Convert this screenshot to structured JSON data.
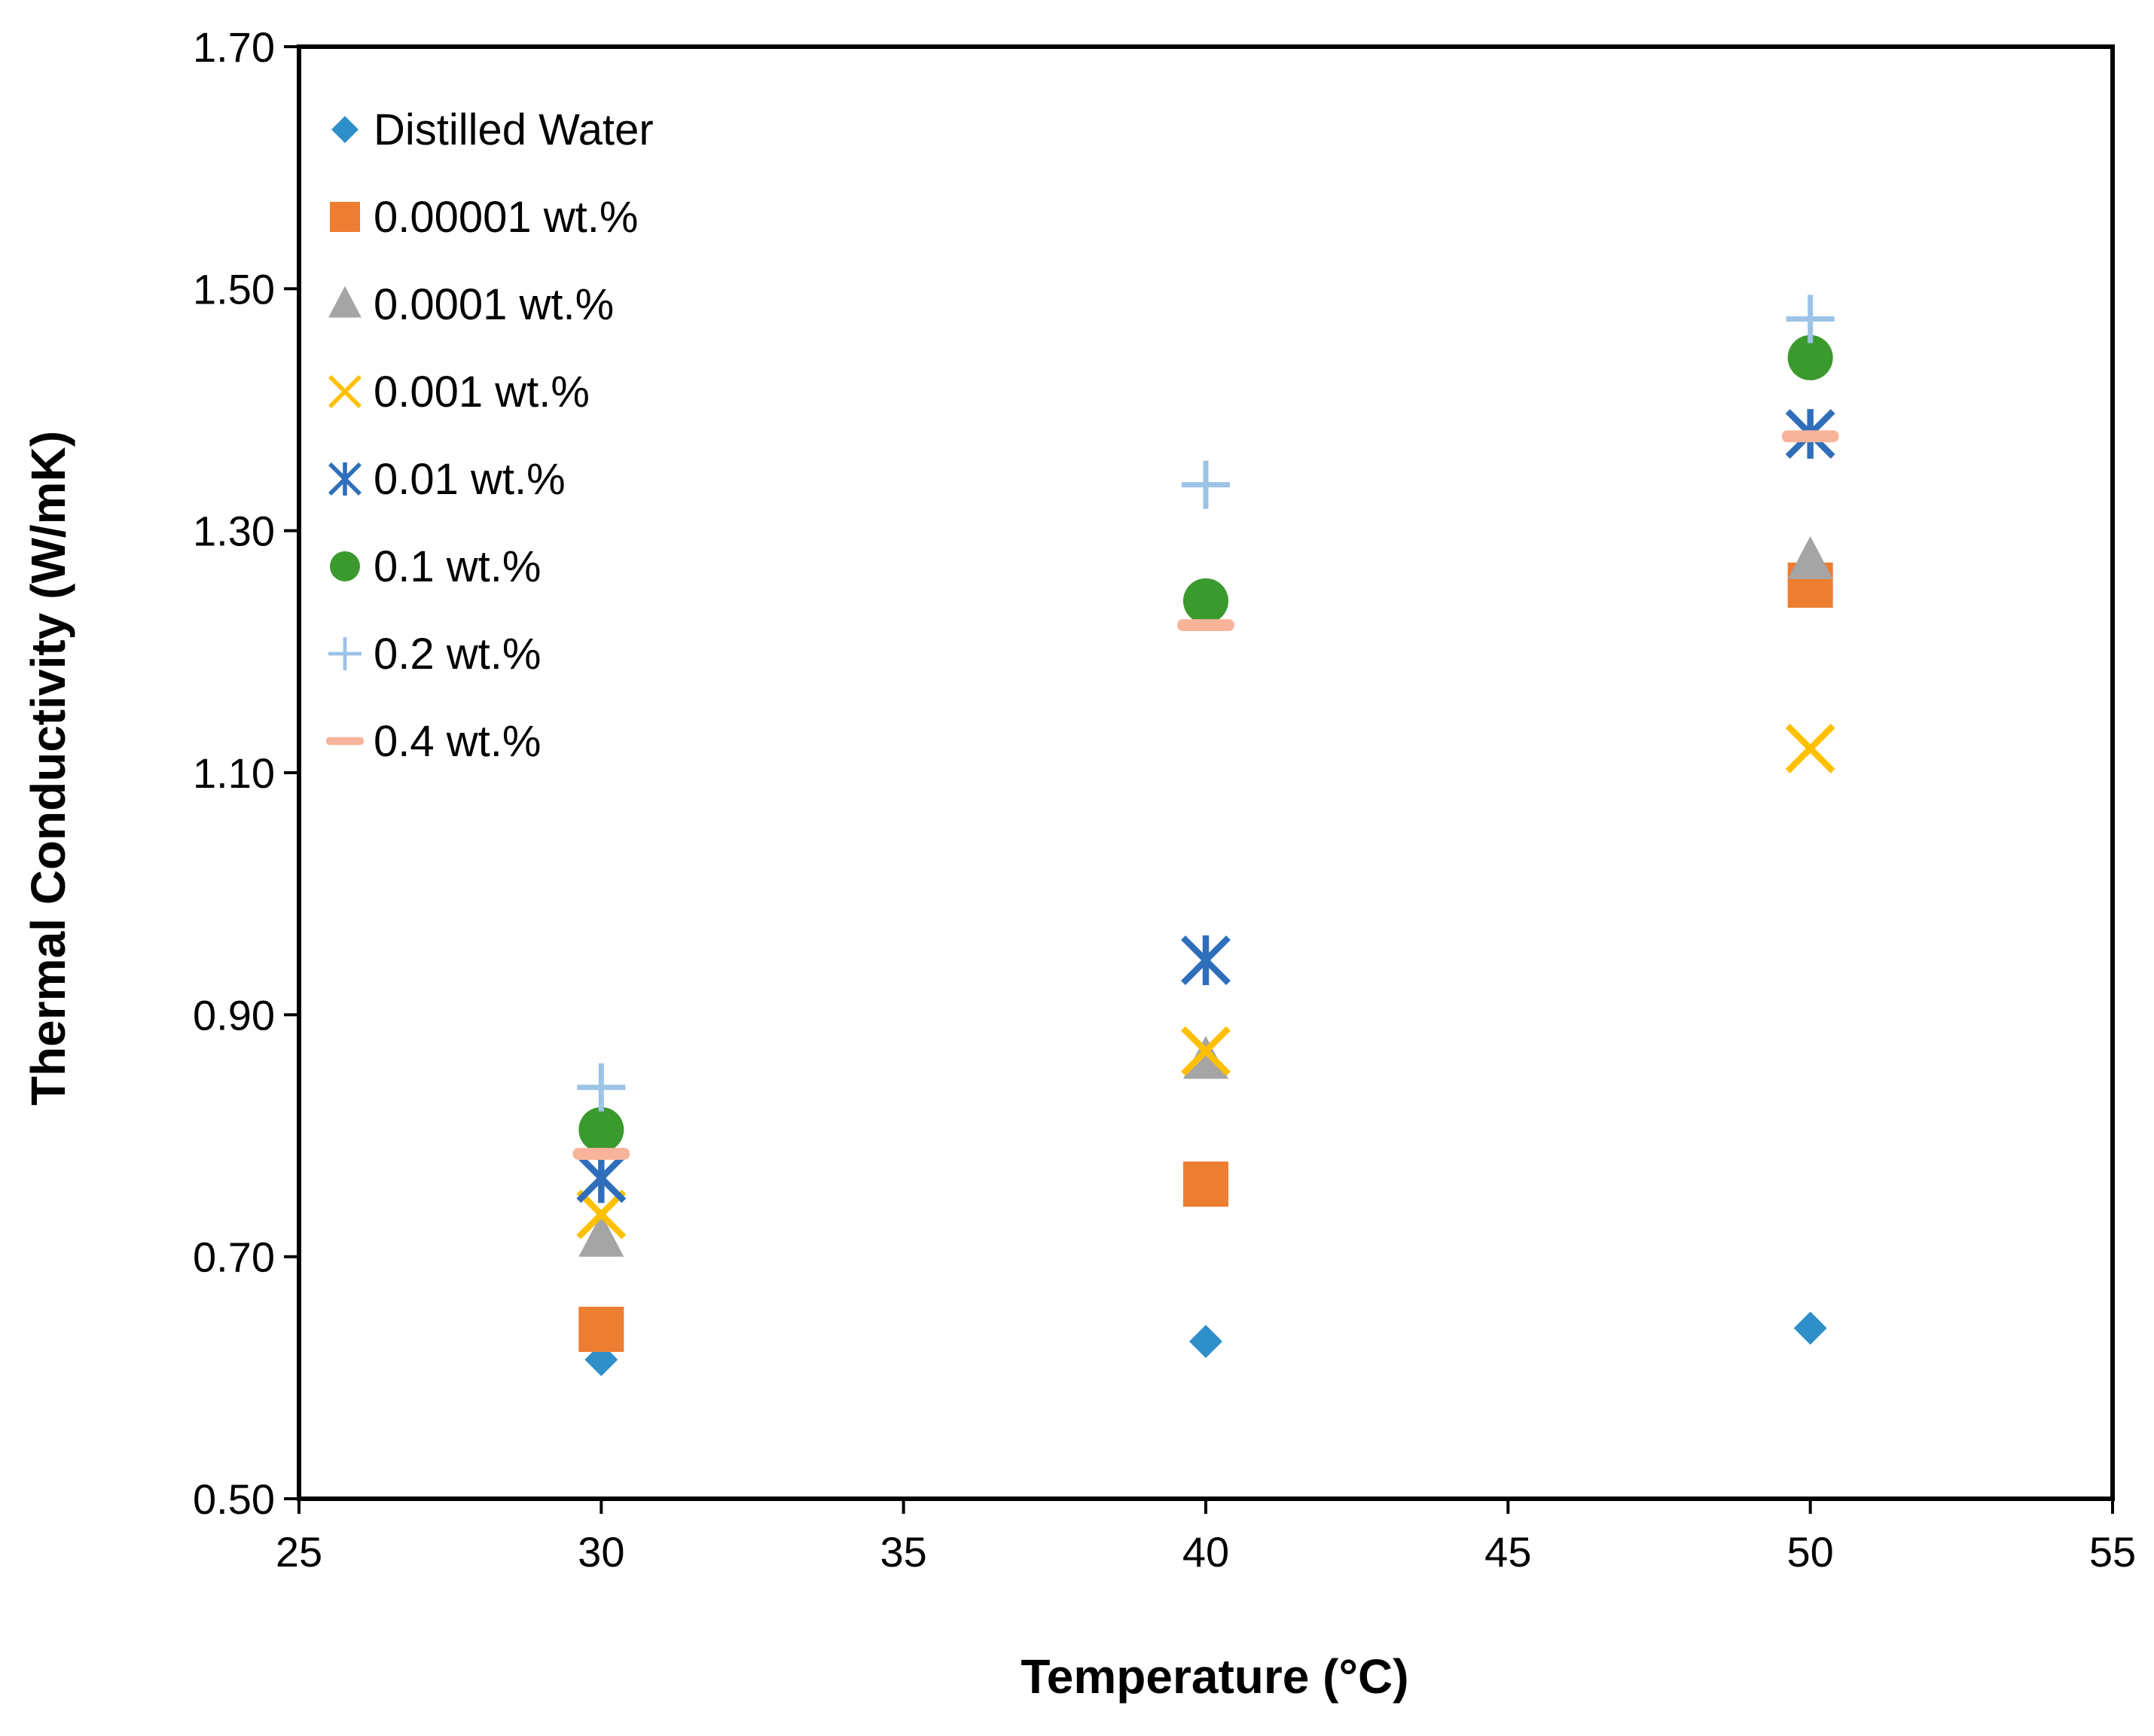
{
  "chart_data": {
    "type": "scatter",
    "title": "",
    "xlabel": "Temperature (°C)",
    "ylabel": "Thermal Conductivity (W/mK)",
    "xlim": [
      25,
      55
    ],
    "ylim": [
      0.5,
      1.7
    ],
    "x_ticks": [
      25,
      30,
      35,
      40,
      45,
      50,
      55
    ],
    "x_tick_labels": [
      "25",
      "30",
      "35",
      "40",
      "45",
      "50",
      "55"
    ],
    "y_ticks": [
      0.5,
      0.7,
      0.9,
      1.1,
      1.3,
      1.5,
      1.7
    ],
    "y_tick_labels": [
      "0.50",
      "0.70",
      "0.90",
      "1.10",
      "1.30",
      "1.50",
      "1.70"
    ],
    "grid": false,
    "legend_position": "top-left",
    "series": [
      {
        "name": "Distilled Water",
        "marker": "diamond",
        "color": "#2E8FC9",
        "x": [
          30,
          40,
          50
        ],
        "y": [
          0.615,
          0.63,
          0.641
        ]
      },
      {
        "name": "0.00001 wt.%",
        "marker": "square",
        "color": "#ED7D31",
        "x": [
          30,
          40,
          50
        ],
        "y": [
          0.64,
          0.76,
          1.255
        ]
      },
      {
        "name": "0.0001 wt.%",
        "marker": "triangle",
        "color": "#A5A5A5",
        "x": [
          30,
          40,
          50
        ],
        "y": [
          0.715,
          0.862,
          1.275
        ]
      },
      {
        "name": "0.001 wt.%",
        "marker": "x",
        "color": "#FFC000",
        "x": [
          30,
          40,
          50
        ],
        "y": [
          0.735,
          0.87,
          1.12
        ]
      },
      {
        "name": "0.01 wt.%",
        "marker": "star",
        "color": "#2F6EBA",
        "x": [
          30,
          40,
          50
        ],
        "y": [
          0.765,
          0.945,
          1.38
        ]
      },
      {
        "name": "0.1 wt.%",
        "marker": "circle",
        "color": "#3A9A2E",
        "x": [
          30,
          40,
          50
        ],
        "y": [
          0.805,
          1.242,
          1.443
        ]
      },
      {
        "name": "0.2 wt.%",
        "marker": "plus",
        "color": "#9DC3E6",
        "x": [
          30,
          40,
          50
        ],
        "y": [
          0.84,
          1.338,
          1.475
        ]
      },
      {
        "name": "0.4 wt.%",
        "marker": "dash",
        "color": "#F8B49A",
        "x": [
          30,
          40,
          50
        ],
        "y": [
          0.785,
          1.222,
          1.378
        ]
      }
    ]
  }
}
